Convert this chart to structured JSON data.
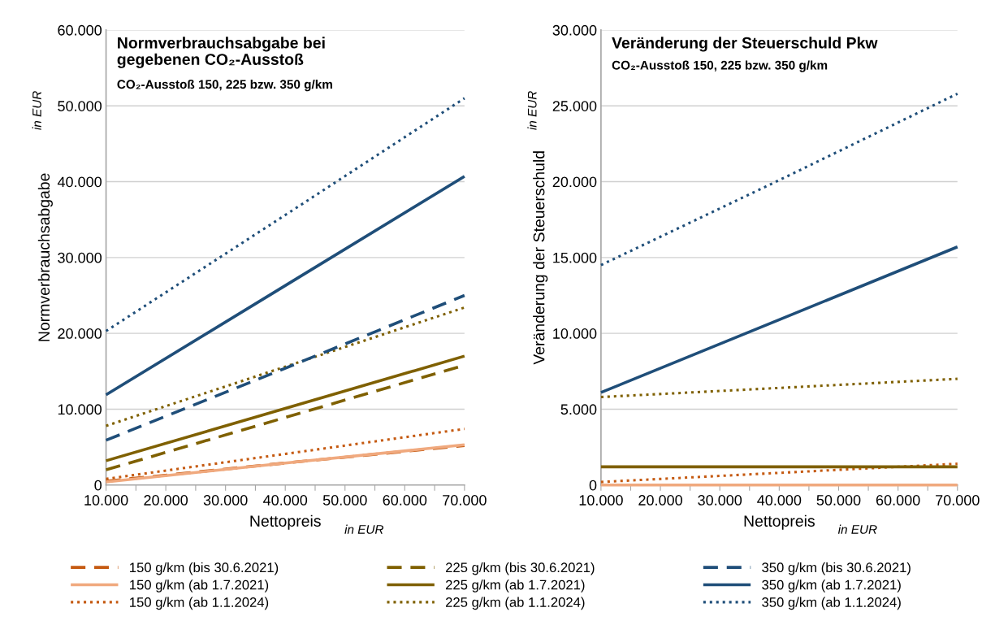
{
  "chart_data": [
    {
      "type": "line",
      "title": "Normverbrauchsabgabe bei\ngegebenen CO₂-Ausstoß",
      "subtitle": "CO₂-Ausstoß 150, 225 bzw. 350 g/km",
      "xlabel": "Nettopreis",
      "ylabel": "Normverbrauchsabgabe",
      "annotations": [
        "in EUR",
        "in EUR"
      ],
      "x": [
        10000,
        40000,
        70000
      ],
      "xlim": [
        10000,
        70000
      ],
      "xticks": [
        {
          "value": 10000,
          "label": "10.000"
        },
        {
          "value": 15000,
          "label": null
        },
        {
          "value": 20000,
          "label": "20.000"
        },
        {
          "value": 25000,
          "label": null
        },
        {
          "value": 30000,
          "label": "30.000"
        },
        {
          "value": 35000,
          "label": null
        },
        {
          "value": 40000,
          "label": "40.000"
        },
        {
          "value": 45000,
          "label": null
        },
        {
          "value": 50000,
          "label": "50.000"
        },
        {
          "value": 55000,
          "label": null
        },
        {
          "value": 60000,
          "label": "60.000"
        },
        {
          "value": 65000,
          "label": null
        },
        {
          "value": 70000,
          "label": "70.000"
        }
      ],
      "ylim": [
        0,
        60000
      ],
      "yticks": [
        0,
        {
          "value": 10000,
          "label": "10.000"
        },
        {
          "value": 20000,
          "label": "20.000"
        },
        {
          "value": 30000,
          "label": "30.000"
        },
        {
          "value": 40000,
          "label": "40.000"
        },
        {
          "value": 50000,
          "label": "50.000"
        },
        {
          "value": 60000,
          "label": "60.000"
        }
      ],
      "grid": "y",
      "legend": "bottom",
      "marker": "none",
      "series": [
        {
          "name": "150 g/km (bis 30.6.2021)",
          "color": "#c55a11",
          "line_style": "dashed",
          "values": [
            500,
            2900,
            5200
          ]
        },
        {
          "name": "150 g/km (ab 1.7.2021)",
          "color": "#f0a97e",
          "line_style": "solid",
          "values": [
            400,
            2900,
            5300
          ]
        },
        {
          "name": "150 g/km (ab 1.1.2024)",
          "color": "#c55a11",
          "line_style": "dotted",
          "values": [
            800,
            4100,
            7400
          ]
        },
        {
          "name": "225 g/km (bis 30.6.2021)",
          "color": "#7f6000",
          "line_style": "dashed",
          "values": [
            2000,
            8900,
            15800
          ]
        },
        {
          "name": "225 g/km (ab 1.7.2021)",
          "color": "#7f6000",
          "line_style": "solid",
          "values": [
            3200,
            10100,
            17000
          ]
        },
        {
          "name": "225 g/km (ab 1.1.2024)",
          "color": "#7f6000",
          "line_style": "dotted",
          "values": [
            7800,
            15600,
            23400
          ]
        },
        {
          "name": "350 g/km (bis 30.6.2021)",
          "color": "#1f4e79",
          "line_style": "dashed",
          "values": [
            5900,
            15400,
            25000
          ]
        },
        {
          "name": "350 g/km (ab 1.7.2021)",
          "color": "#1f4e79",
          "line_style": "solid",
          "values": [
            11900,
            26300,
            40700
          ]
        },
        {
          "name": "350 g/km (ab 1.1.2024)",
          "color": "#1f4e79",
          "line_style": "dotted",
          "values": [
            20300,
            35600,
            51000
          ]
        }
      ]
    },
    {
      "type": "line",
      "title": "Veränderung der Steuerschuld Pkw",
      "subtitle": "CO₂-Ausstoß 150, 225 bzw. 350 g/km",
      "xlabel": "Nettopreis",
      "ylabel": "Veränderung der Steuerschuld",
      "annotations": [
        "in EUR",
        "in EUR"
      ],
      "x": [
        10000,
        40000,
        70000
      ],
      "xlim": [
        10000,
        70000
      ],
      "xticks": [
        {
          "value": 10000,
          "label": "10.000"
        },
        {
          "value": 15000,
          "label": null
        },
        {
          "value": 20000,
          "label": "20.000"
        },
        {
          "value": 25000,
          "label": null
        },
        {
          "value": 30000,
          "label": "30.000"
        },
        {
          "value": 35000,
          "label": null
        },
        {
          "value": 40000,
          "label": "40.000"
        },
        {
          "value": 45000,
          "label": null
        },
        {
          "value": 50000,
          "label": "50.000"
        },
        {
          "value": 55000,
          "label": null
        },
        {
          "value": 60000,
          "label": "60.000"
        },
        {
          "value": 65000,
          "label": null
        },
        {
          "value": 70000,
          "label": "70.000"
        }
      ],
      "ylim": [
        0,
        30000
      ],
      "yticks": [
        0,
        {
          "value": 5000,
          "label": "5.000"
        },
        {
          "value": 10000,
          "label": "10.000"
        },
        {
          "value": 15000,
          "label": "15.000"
        },
        {
          "value": 20000,
          "label": "20.000"
        },
        {
          "value": 25000,
          "label": "25.000"
        },
        {
          "value": 30000,
          "label": "30.000"
        }
      ],
      "grid": "y",
      "marker": "none",
      "series": [
        {
          "color": "#f0a97e",
          "line_style": "solid",
          "values": [
            0,
            0,
            0
          ]
        },
        {
          "color": "#c55a11",
          "line_style": "dotted",
          "values": [
            200,
            800,
            1400
          ]
        },
        {
          "color": "#7f6000",
          "line_style": "solid",
          "values": [
            1200,
            1200,
            1200
          ]
        },
        {
          "color": "#7f6000",
          "line_style": "dotted",
          "values": [
            5800,
            6400,
            7000
          ]
        },
        {
          "color": "#1f4e79",
          "line_style": "solid",
          "values": [
            6100,
            10900,
            15700
          ]
        },
        {
          "color": "#1f4e79",
          "line_style": "dotted",
          "values": [
            14500,
            20100,
            25800
          ]
        }
      ]
    }
  ]
}
